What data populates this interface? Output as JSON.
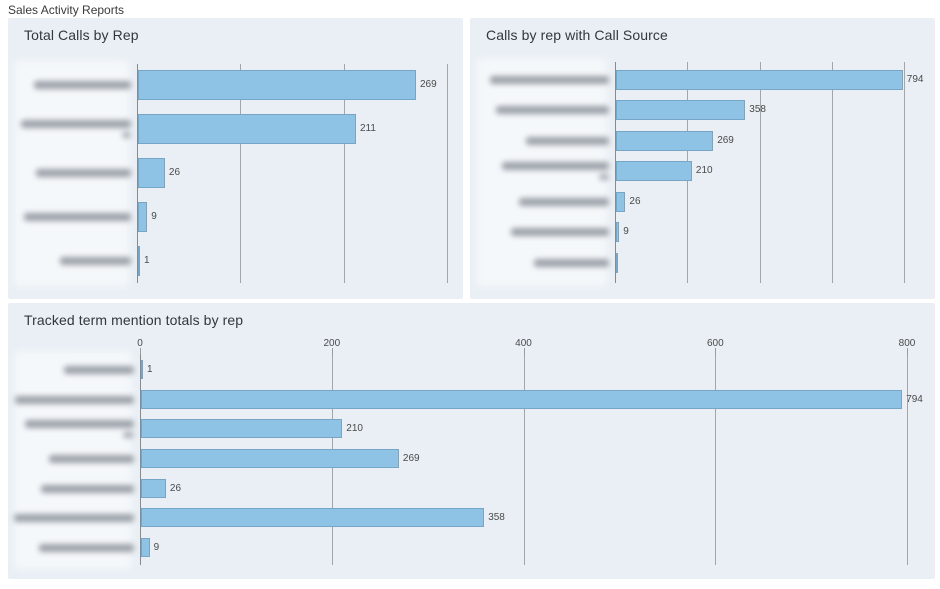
{
  "page": {
    "title": "Sales Activity Reports"
  },
  "colors": {
    "page_bg": "#ffffff",
    "panel_bg": "#e9eff5",
    "bar_fill": "#8fc3e6",
    "bar_border": "#6f9fbf",
    "gridline": "#a5a5a5",
    "axis_line": "#8a8a8a",
    "title_text": "#33373b",
    "value_text": "#4a4a4a"
  },
  "chart_data": [
    {
      "type": "bar",
      "orientation": "horizontal",
      "title": "Total Calls by Rep",
      "categories_redacted": true,
      "categories": [
        "(redacted)",
        "(redacted)",
        "(redacted)",
        "(redacted)",
        "(redacted)"
      ],
      "values": [
        269,
        211,
        26,
        9,
        1
      ],
      "value_labels": [
        "269",
        "211",
        "26",
        "9",
        "1"
      ],
      "xlim": [
        0,
        300
      ],
      "gridline_values": [
        0,
        100,
        200,
        300
      ],
      "axis_tick_labels_visible": false,
      "legend": "none",
      "grid": "vertical"
    },
    {
      "type": "bar",
      "orientation": "horizontal",
      "title": "Calls by rep with Call Source",
      "categories_redacted": true,
      "categories": [
        "(redacted)",
        "(redacted)",
        "(redacted)",
        "(redacted)",
        "(redacted)",
        "(redacted)",
        "(redacted)"
      ],
      "values": [
        794,
        358,
        269,
        210,
        26,
        9,
        1
      ],
      "value_labels": [
        "794",
        "358",
        "269",
        "210",
        "26",
        "9",
        ""
      ],
      "xlim": [
        0,
        800
      ],
      "gridline_values": [
        0,
        200,
        400,
        600,
        800
      ],
      "axis_tick_labels_visible": false,
      "legend": "none",
      "grid": "vertical"
    },
    {
      "type": "bar",
      "orientation": "horizontal",
      "title": "Tracked term mention totals by rep",
      "categories_redacted": true,
      "categories": [
        "(redacted)",
        "(redacted)",
        "(redacted)",
        "(redacted)",
        "(redacted)",
        "(redacted)",
        "(redacted)"
      ],
      "values": [
        1,
        794,
        210,
        269,
        26,
        358,
        9
      ],
      "value_labels": [
        "1",
        "794",
        "210",
        "269",
        "26",
        "358",
        "9"
      ],
      "xlim": [
        0,
        800
      ],
      "gridline_values": [
        0,
        200,
        400,
        600,
        800
      ],
      "axis_tick_labels": [
        "0",
        "200",
        "400",
        "600",
        "800"
      ],
      "axis_tick_labels_visible": true,
      "legend": "none",
      "grid": "vertical"
    }
  ]
}
